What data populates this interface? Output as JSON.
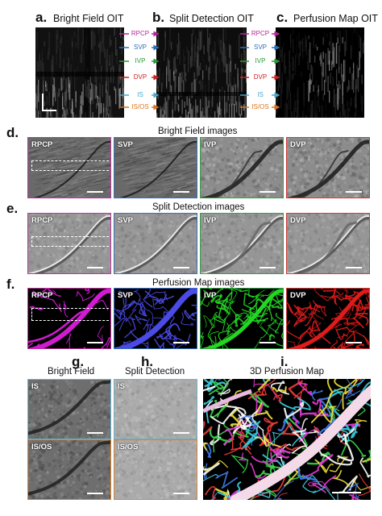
{
  "panels_top": {
    "a": {
      "letter": "a.",
      "title": "Bright Field OIT"
    },
    "b": {
      "letter": "b.",
      "title": "Split Detection OIT"
    },
    "c": {
      "letter": "c.",
      "title": "Perfusion Map OIT"
    }
  },
  "depth_labels": [
    {
      "name": "RPCP",
      "color": "#b5279a"
    },
    {
      "name": "SVP",
      "color": "#2f6fb8"
    },
    {
      "name": "IVP",
      "color": "#2a9a3a"
    },
    {
      "name": "DVP",
      "color": "#cc2222"
    },
    {
      "name": "IS",
      "color": "#4aa9c9"
    },
    {
      "name": "IS/OS",
      "color": "#d9741a"
    }
  ],
  "rows": {
    "d": {
      "letter": "d.",
      "title": "Bright Field images"
    },
    "e": {
      "letter": "e.",
      "title": "Split Detection images"
    },
    "f": {
      "letter": "f.",
      "title": "Perfusion Map images"
    }
  },
  "row_tags": [
    "RPCP",
    "SVP",
    "IVP",
    "DVP"
  ],
  "row_colors": [
    "#c0329e",
    "#3a6fc0",
    "#34a04a",
    "#d43a3a"
  ],
  "bottom": {
    "g": {
      "letter": "g.",
      "title": "Bright Field"
    },
    "h": {
      "letter": "h.",
      "title": "Split Detection"
    },
    "i": {
      "letter": "i.",
      "title": "3D Perfusion Map"
    },
    "tags": [
      "IS",
      "IS/OS"
    ],
    "border_colors": [
      "#6fb3cc",
      "#d9812e"
    ]
  }
}
